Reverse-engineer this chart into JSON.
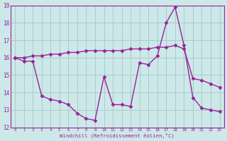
{
  "line1_x": [
    0,
    1,
    2,
    3,
    4,
    5,
    6,
    7,
    8,
    9,
    10,
    11,
    12,
    13,
    14,
    15,
    16,
    17,
    18,
    19,
    20,
    21,
    22,
    23
  ],
  "line1_y": [
    16.0,
    16.0,
    16.1,
    16.1,
    16.2,
    16.2,
    16.3,
    16.3,
    16.4,
    16.4,
    16.4,
    16.4,
    16.4,
    16.5,
    16.5,
    16.5,
    16.6,
    16.6,
    16.7,
    16.5,
    14.8,
    14.7,
    14.5,
    14.3
  ],
  "line2_x": [
    0,
    1,
    2,
    3,
    4,
    5,
    6,
    7,
    8,
    9,
    10,
    11,
    12,
    13,
    14,
    15,
    16,
    17,
    18,
    19,
    20,
    21,
    22,
    23
  ],
  "line2_y": [
    16.0,
    15.8,
    15.8,
    13.8,
    13.6,
    13.5,
    13.3,
    12.8,
    12.5,
    12.4,
    14.9,
    13.3,
    13.3,
    13.2,
    15.7,
    15.6,
    16.1,
    18.0,
    18.9,
    16.7,
    13.7,
    13.1,
    13.0,
    12.9
  ],
  "line_color": "#992299",
  "bg_color": "#cce8e8",
  "grid_color": "#aacccc",
  "xlabel": "Windchill (Refroidissement éolien,°C)",
  "ylim": [
    12,
    19
  ],
  "xlim": [
    -0.5,
    23.5
  ],
  "yticks": [
    12,
    13,
    14,
    15,
    16,
    17,
    18,
    19
  ],
  "xticks": [
    0,
    1,
    2,
    3,
    4,
    5,
    6,
    7,
    8,
    9,
    10,
    11,
    12,
    13,
    14,
    15,
    16,
    17,
    18,
    19,
    20,
    21,
    22,
    23
  ],
  "marker": "D",
  "marker_size": 2.5,
  "line_width": 1.0
}
